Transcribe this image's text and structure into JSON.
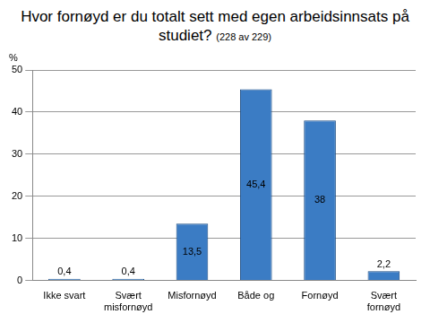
{
  "chart_data": {
    "type": "bar",
    "title": "Hvor fornøyd er du totalt sett med egen arbeidsinnsats på studiet?",
    "subtitle": "(228 av 229)",
    "ylabel": "%",
    "categories": [
      "Ikke svart",
      "Svært misfornøyd",
      "Misfornøyd",
      "Både og",
      "Fornøyd",
      "Svært fornøyd"
    ],
    "values": [
      0.4,
      0.4,
      13.5,
      45.4,
      38,
      2.2
    ],
    "value_labels": [
      "0,4",
      "0,4",
      "13,5",
      "45,4",
      "38",
      "2,2"
    ],
    "color": "#3b7cc4",
    "ylim": [
      0,
      50
    ],
    "yticks": [
      0,
      10,
      20,
      30,
      40,
      50
    ],
    "grid": true,
    "data_labels": true
  }
}
